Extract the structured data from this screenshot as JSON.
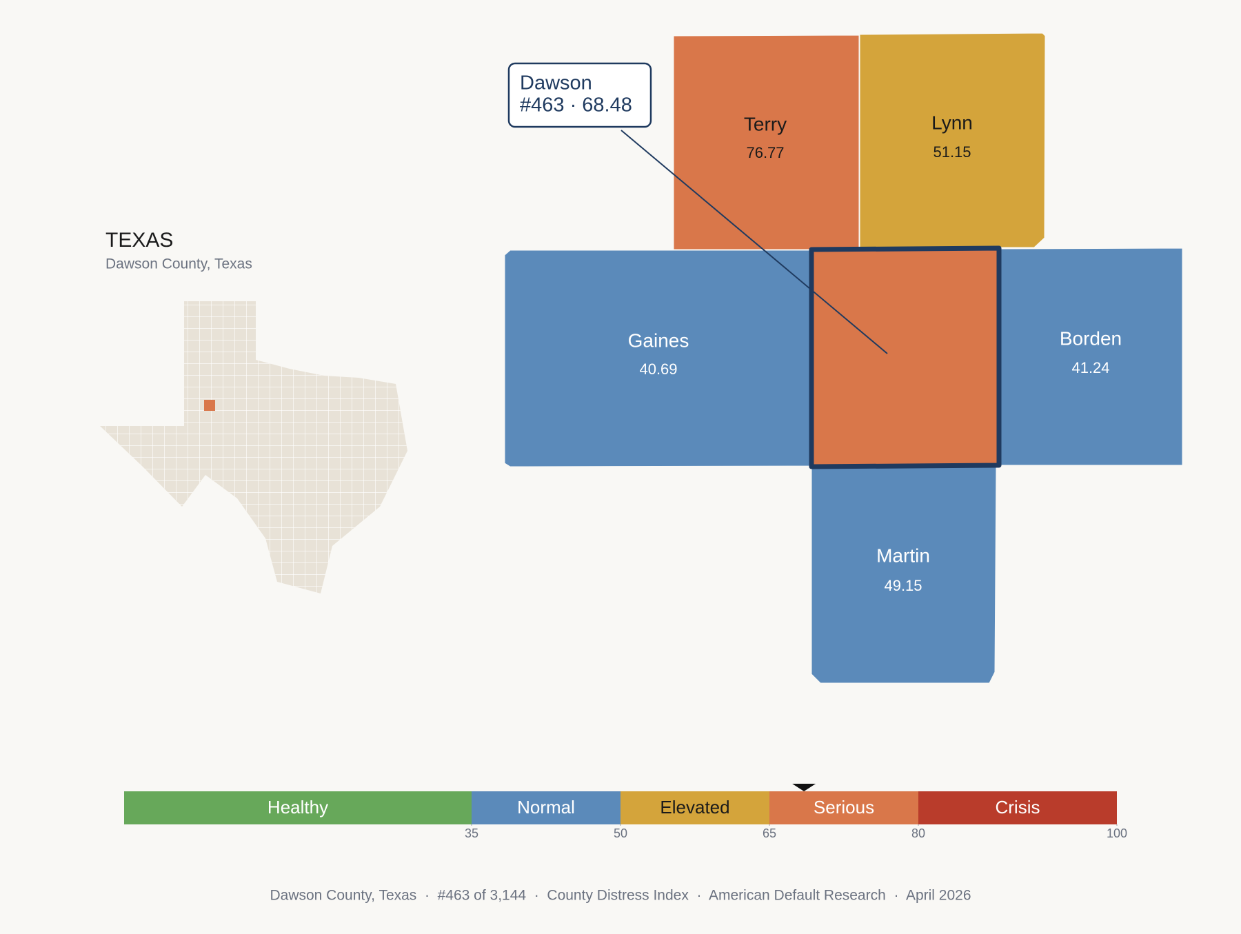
{
  "state": {
    "title": "TEXAS",
    "subtitle": "Dawson County, Texas"
  },
  "counties": [
    {
      "name": "Terry",
      "value": 76.77
    },
    {
      "name": "Lynn",
      "value": 51.15
    },
    {
      "name": "Gaines",
      "value": 40.69
    },
    {
      "name": "Dawson",
      "value": 68.48
    },
    {
      "name": "Borden",
      "value": 41.24
    },
    {
      "name": "Martin",
      "value": 49.15
    }
  ],
  "callout": {
    "name": "Dawson",
    "detail": "#463 · 68.48"
  },
  "scale": {
    "xlim": [
      0,
      100
    ],
    "ticks": [
      35,
      50,
      65,
      80,
      100
    ],
    "marker": 68.48,
    "bands": [
      {
        "label": "Healthy",
        "color": "#67a85a"
      },
      {
        "label": "Normal",
        "color": "#5b8aba"
      },
      {
        "label": "Elevated",
        "color": "#d4a43b"
      },
      {
        "label": "Serious",
        "color": "#d9774a"
      },
      {
        "label": "Crisis",
        "color": "#b93c2b"
      }
    ]
  },
  "footer": "Dawson County, Texas  ·  #463 of 3,144  ·  County Distress Index  ·  American Default Research  ·  April 2026"
}
